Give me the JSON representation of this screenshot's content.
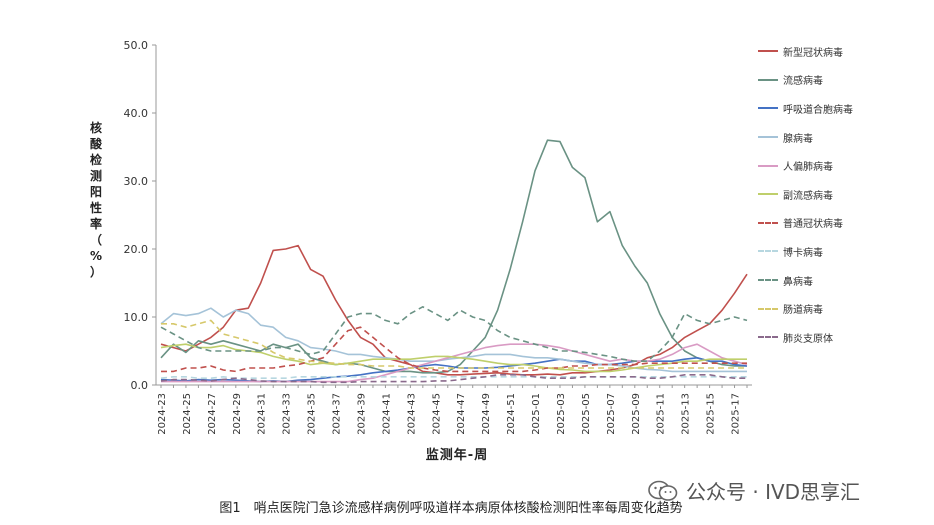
{
  "chart_data": {
    "type": "line",
    "title": "",
    "xlabel": "监测年-周",
    "ylabel": "核酸检测阳性率（%）",
    "ylim": [
      0,
      50
    ],
    "yticks": [
      "0.0",
      "10.0",
      "20.0",
      "30.0",
      "40.0",
      "50.0"
    ],
    "grid": false,
    "legend_position": "right",
    "x_tick_labels": [
      "2024-23",
      "2024-25",
      "2024-27",
      "2024-29",
      "2024-31",
      "2024-33",
      "2024-35",
      "2024-37",
      "2024-39",
      "2024-41",
      "2024-43",
      "2024-45",
      "2024-47",
      "2024-49",
      "2024-51",
      "2025-01",
      "2025-03",
      "2025-05",
      "2025-07",
      "2025-09",
      "2025-11",
      "2025-13",
      "2025-15",
      "2025-17"
    ],
    "categories": [
      "2024-23",
      "2024-24",
      "2024-25",
      "2024-26",
      "2024-27",
      "2024-28",
      "2024-29",
      "2024-30",
      "2024-31",
      "2024-32",
      "2024-33",
      "2024-34",
      "2024-35",
      "2024-36",
      "2024-37",
      "2024-38",
      "2024-39",
      "2024-40",
      "2024-41",
      "2024-42",
      "2024-43",
      "2024-44",
      "2024-45",
      "2024-46",
      "2024-47",
      "2024-48",
      "2024-49",
      "2024-50",
      "2024-51",
      "2024-52",
      "2025-01",
      "2025-02",
      "2025-03",
      "2025-04",
      "2025-05",
      "2025-06",
      "2025-07",
      "2025-08",
      "2025-09",
      "2025-10",
      "2025-11",
      "2025-12",
      "2025-13",
      "2025-14",
      "2025-15",
      "2025-16",
      "2025-17",
      "2025-18"
    ],
    "series": [
      {
        "name": "新型冠状病毒",
        "color": "#c0504d",
        "dash": "solid",
        "values": [
          6,
          5.5,
          5,
          6,
          7,
          8.5,
          11,
          11.3,
          15,
          19.8,
          20,
          20.5,
          17,
          16,
          12.5,
          9.5,
          7,
          6,
          4,
          3.5,
          3,
          2,
          1.8,
          1.5,
          1.5,
          1.6,
          1.7,
          1.8,
          1.6,
          1.5,
          1.5,
          1.6,
          1.5,
          1.8,
          1.8,
          2,
          2.2,
          2.5,
          3,
          4,
          4.5,
          5.5,
          7,
          8,
          9,
          11,
          13.5,
          16.3
        ]
      },
      {
        "name": "流感病毒",
        "color": "#6a9284",
        "dash": "solid",
        "values": [
          4,
          6,
          4.8,
          6.5,
          6,
          6.5,
          6,
          5.5,
          5,
          6,
          5.5,
          6,
          4,
          3.5,
          3,
          3.2,
          3,
          2.5,
          2,
          2,
          2,
          1.8,
          1.8,
          2,
          3,
          5,
          7,
          11,
          17,
          24,
          31.5,
          36,
          35.8,
          32,
          30.5,
          24,
          25.5,
          20.5,
          17.5,
          15,
          10.5,
          7,
          5,
          4,
          3.5,
          3,
          2.8,
          2.8
        ]
      },
      {
        "name": "呼吸道合胞病毒",
        "color": "#4472c4",
        "dash": "solid",
        "values": [
          0.8,
          0.7,
          0.6,
          0.8,
          0.7,
          0.8,
          0.7,
          0.6,
          0.5,
          0.6,
          0.5,
          0.7,
          0.8,
          1,
          1.2,
          1.3,
          1.5,
          1.8,
          2,
          2.2,
          2.5,
          2.8,
          3,
          2.8,
          2.5,
          2.5,
          2.5,
          2.6,
          2.8,
          3,
          3.2,
          3.5,
          3.8,
          3.5,
          3.5,
          3,
          3,
          3.2,
          3.5,
          3.5,
          3.5,
          3.5,
          3.8,
          4,
          3.5,
          3.5,
          3,
          2.8
        ]
      },
      {
        "name": "腺病毒",
        "color": "#a5c3d8",
        "dash": "solid",
        "values": [
          9,
          10.5,
          10.2,
          10.5,
          11.3,
          10,
          11,
          10.5,
          8.8,
          8.5,
          7,
          6.5,
          5.5,
          5.3,
          5,
          4.5,
          4.5,
          4.2,
          4,
          3.8,
          3.5,
          3.5,
          3.5,
          3.8,
          4,
          4.2,
          4.5,
          4.5,
          4.5,
          4.2,
          4,
          4,
          3.8,
          3.5,
          3.2,
          3,
          3,
          2.8,
          2.5,
          2.3,
          2.2,
          2,
          2,
          2,
          2,
          2,
          2,
          2
        ]
      },
      {
        "name": "人偏肺病毒",
        "color": "#d99bc4",
        "dash": "solid",
        "values": [
          0.5,
          0.5,
          0.5,
          0.5,
          0.5,
          0.5,
          0.5,
          0.5,
          0.5,
          0.5,
          0.5,
          0.5,
          0.5,
          0.5,
          0.5,
          0.5,
          0.8,
          1,
          1.5,
          2,
          2.5,
          3,
          3.5,
          4,
          4.5,
          5,
          5.5,
          5.8,
          6,
          6,
          6,
          5.8,
          5.5,
          5,
          4.5,
          4,
          3.5,
          3.8,
          3.5,
          3.5,
          3.8,
          4.5,
          5.5,
          6,
          5,
          4,
          3.5,
          3
        ]
      },
      {
        "name": "副流感病毒",
        "color": "#bfcf6b",
        "dash": "solid",
        "values": [
          5.5,
          5.8,
          6,
          5.5,
          5.5,
          5.8,
          5.2,
          5,
          4.8,
          4.2,
          3.8,
          3.5,
          3,
          3.2,
          3,
          3.2,
          3.5,
          3.8,
          3.8,
          3.8,
          3.8,
          4,
          4.2,
          4.2,
          4,
          3.8,
          3.5,
          3.2,
          3,
          3,
          2.8,
          2.5,
          2.3,
          2.2,
          2,
          2,
          2,
          2.2,
          2.5,
          2.8,
          3,
          3.2,
          3.5,
          3.5,
          3.8,
          3.8,
          3.8,
          3.8
        ]
      },
      {
        "name": "普通冠状病毒",
        "color": "#c0504d",
        "dash": "dashed",
        "values": [
          2,
          2,
          2.5,
          2.5,
          2.8,
          2.2,
          2,
          2.5,
          2.5,
          2.5,
          2.8,
          3,
          3.5,
          4,
          6,
          8,
          8.5,
          7,
          5.5,
          4,
          3,
          2.5,
          2.2,
          2,
          2,
          2,
          2,
          2,
          2,
          2,
          2.2,
          2.5,
          2.5,
          2.8,
          2.8,
          3,
          3,
          3,
          3,
          3.2,
          3.2,
          3.2,
          3.2,
          3.2,
          3.2,
          3.2,
          3.2,
          3.2
        ]
      },
      {
        "name": "博卡病毒",
        "color": "#b7d7e0",
        "dash": "dashed",
        "values": [
          1,
          1.2,
          1.2,
          1,
          1,
          1.2,
          1,
          1,
          1,
          1,
          1,
          1.2,
          1.2,
          1.2,
          1.2,
          1.2,
          1.2,
          1.2,
          1.2,
          1.2,
          1.2,
          1.2,
          1.2,
          1.2,
          1.2,
          1.2,
          1.2,
          1.2,
          1.2,
          1.2,
          1.2,
          1.2,
          1.2,
          1.2,
          1.2,
          1.2,
          1.2,
          1.2,
          1.2,
          1.2,
          1.2,
          1.2,
          1.2,
          1.2,
          1.2,
          1.2,
          1.2,
          1.2
        ]
      },
      {
        "name": "鼻病毒",
        "color": "#6a9284",
        "dash": "dashed",
        "values": [
          8.5,
          7.5,
          6.5,
          5.5,
          5,
          5,
          5,
          5,
          5,
          5.5,
          5.5,
          5,
          4.5,
          5,
          7.5,
          10,
          10.5,
          10.5,
          9.5,
          9,
          10.5,
          11.5,
          10.5,
          9.5,
          11,
          10,
          9.5,
          8,
          7,
          6.5,
          6,
          5.5,
          5,
          5,
          4.8,
          4.5,
          4.2,
          3.8,
          3.5,
          3.5,
          5,
          7,
          10.5,
          9.5,
          9,
          9.5,
          10,
          9.5
        ]
      },
      {
        "name": "肠道病毒",
        "color": "#d6c86a",
        "dash": "dashed",
        "values": [
          9,
          9,
          8.5,
          9,
          9.5,
          7.5,
          7,
          6.5,
          6,
          4.8,
          4,
          3.8,
          3.5,
          3.3,
          3.2,
          3,
          3,
          2.8,
          2.8,
          2.8,
          2.5,
          2.5,
          2.5,
          2.5,
          2.5,
          2.5,
          2.5,
          2.5,
          2.5,
          2.5,
          2.5,
          2.5,
          2.5,
          2.5,
          2.5,
          2.5,
          2.5,
          2.5,
          2.5,
          2.5,
          2.5,
          2.5,
          2.5,
          2.5,
          2.5,
          2.5,
          2.5,
          2.5
        ]
      },
      {
        "name": "肺炎支原体",
        "color": "#8a6a8c",
        "dash": "dashed",
        "values": [
          0.6,
          0.8,
          0.8,
          0.7,
          0.6,
          0.8,
          1,
          0.8,
          0.6,
          0.5,
          0.5,
          0.5,
          0.5,
          0.4,
          0.4,
          0.4,
          0.5,
          0.5,
          0.5,
          0.5,
          0.5,
          0.5,
          0.6,
          0.6,
          0.8,
          1,
          1.2,
          1.5,
          1.5,
          1.5,
          1.2,
          1,
          1,
          1,
          1.2,
          1.2,
          1.2,
          1.2,
          1.2,
          1,
          1,
          1.2,
          1.5,
          1.5,
          1.5,
          1.2,
          1,
          1
        ]
      }
    ]
  },
  "caption": "图1　哨点医院门急诊流感样病例呼吸道样本病原体核酸检测阳性率每周变化趋势",
  "watermark": "公众号 · IVD思享汇",
  "watermark_icon": "wechat-icon"
}
